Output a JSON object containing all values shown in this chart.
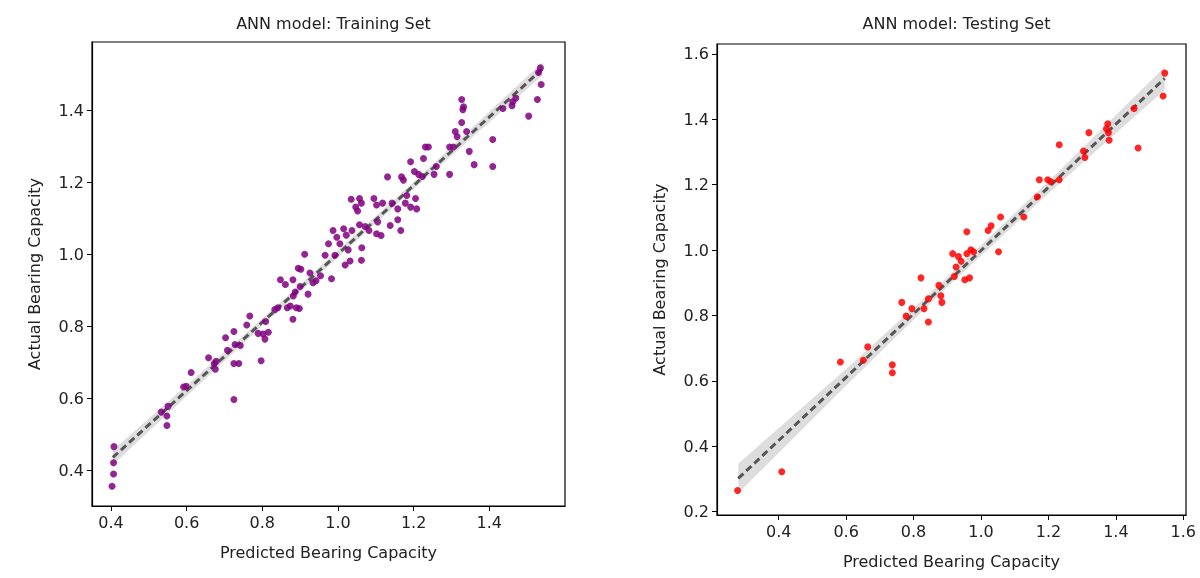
{
  "chart_data": [
    {
      "type": "scatter",
      "title": "ANN model: Training Set",
      "xlabel": "Predicted Bearing Capacity",
      "ylabel": "Actual Bearing Capacity",
      "xlim": [
        0.35,
        1.6
      ],
      "ylim": [
        0.3,
        1.59
      ],
      "xticks": [
        0.4,
        0.6,
        0.8,
        {
          "value": 1,
          "label": "1.0"
        },
        1.2,
        1.4
      ],
      "yticks": [
        0.4,
        0.6,
        0.8,
        {
          "value": 1,
          "label": "1.0"
        },
        1.2,
        1.4
      ],
      "grid": false,
      "series": [
        {
          "marker": "circle",
          "color": "#800080",
          "x": [
            0.403,
            0.407,
            0.407,
            0.408,
            0.533,
            0.551,
            0.548,
            0.548,
            0.592,
            0.599,
            0.612,
            0.658,
            0.673,
            0.676,
            0.678,
            0.703,
            0.708,
            0.725,
            0.725,
            0.725,
            0.728,
            0.738,
            0.742,
            0.759,
            0.767,
            0.797,
            0.789,
            0.802,
            0.807,
            0.809,
            0.816,
            0.833,
            0.841,
            0.848,
            0.861,
            0.866,
            0.874,
            0.881,
            0.881,
            0.882,
            0.887,
            0.89,
            0.898,
            0.895,
            0.902,
            0.9,
            0.912,
            0.921,
            0.926,
            0.934,
            0.942,
            0.954,
            0.966,
            0.975,
            0.983,
            0.987,
            0.992,
            0.997,
            1.005,
            1.015,
            1.019,
            1.022,
            1.027,
            1.032,
            1.035,
            1.037,
            1.047,
            1.052,
            1.057,
            1.057,
            1.062,
            1.062,
            1.063,
            1.072,
            1.082,
            1.095,
            1.102,
            1.102,
            1.105,
            1.114,
            1.118,
            1.131,
            1.138,
            1.143,
            1.158,
            1.158,
            1.166,
            1.168,
            1.173,
            1.178,
            1.182,
            1.192,
            1.192,
            1.202,
            1.205,
            1.208,
            1.213,
            1.223,
            1.226,
            1.231,
            1.239,
            1.254,
            1.26,
            1.295,
            1.295,
            1.305,
            1.31,
            1.315,
            1.327,
            1.33,
            1.332,
            1.327,
            1.34,
            1.347,
            1.36,
            1.409,
            1.409,
            1.436,
            1.46,
            1.462,
            1.47,
            1.504,
            1.527,
            1.53,
            1.535,
            1.537
          ],
          "values": [
            0.355,
            0.389,
            0.42,
            0.465,
            0.561,
            0.577,
            0.55,
            0.524,
            0.631,
            0.633,
            0.671,
            0.712,
            0.696,
            0.68,
            0.702,
            0.768,
            0.733,
            0.785,
            0.696,
            0.596,
            0.749,
            0.696,
            0.746,
            0.803,
            0.828,
            0.704,
            0.78,
            0.778,
            0.764,
            0.813,
            0.783,
            0.846,
            0.851,
            0.929,
            0.916,
            0.851,
            0.856,
            0.819,
            0.929,
            0.884,
            0.895,
            0.851,
            0.849,
            0.961,
            0.958,
            0.91,
            1.0,
            0.889,
            0.948,
            0.921,
            0.926,
            0.94,
            0.997,
            1.029,
            0.932,
            1.066,
            0.997,
            1.047,
            1.029,
            1.071,
            0.97,
            1.053,
            1.012,
            0.981,
            1.153,
            1.066,
            1.131,
            1.12,
            1.155,
            1.082,
            0.983,
            1.142,
            1.018,
            1.077,
            1.066,
            1.155,
            1.057,
            1.137,
            1.09,
            1.052,
            1.142,
            1.215,
            1.08,
            1.142,
            1.126,
            1.096,
            1.066,
            1.215,
            1.206,
            1.142,
            1.163,
            1.257,
            1.131,
            1.23,
            1.155,
            1.126,
            1.222,
            1.216,
            1.266,
            1.298,
            1.298,
            1.222,
            1.244,
            1.222,
            1.298,
            1.298,
            1.341,
            1.327,
            1.43,
            1.402,
            1.41,
            1.366,
            1.341,
            1.286,
            1.249,
            1.319,
            1.244,
            1.405,
            1.413,
            1.424,
            1.434,
            1.384,
            1.43,
            1.505,
            1.518,
            1.472
          ]
        },
        {
          "type": "line",
          "marker": "none",
          "color": "#555555",
          "line_style": "dashed",
          "x": [
            0.405,
            0.8,
            1.2,
            1.54
          ],
          "values": [
            0.435,
            0.811,
            1.191,
            1.515
          ],
          "lower": [
            0.415,
            0.801,
            1.181,
            1.497
          ],
          "upper": [
            0.455,
            0.821,
            1.201,
            1.533
          ]
        }
      ]
    },
    {
      "type": "scatter",
      "title": "ANN model: Testing Set",
      "xlabel": "Predicted Bearing Capacity",
      "ylabel": "Actual Bearing Capacity",
      "xlim": [
        0.217,
        1.608
      ],
      "ylim": [
        0.19,
        1.63
      ],
      "xticks": [
        0.4,
        0.6,
        0.8,
        {
          "value": 1,
          "label": "1.0"
        },
        1.2,
        1.4,
        1.6
      ],
      "yticks": [
        0.2,
        0.4,
        0.6,
        0.8,
        {
          "value": 1,
          "label": "1.0"
        },
        1.2,
        1.4,
        1.6
      ],
      "grid": false,
      "series": [
        {
          "marker": "circle",
          "color": "#ff0000",
          "x": [
            0.278,
            0.409,
            0.583,
            0.651,
            0.664,
            0.737,
            0.737,
            0.765,
            0.778,
            0.795,
            0.822,
            0.831,
            0.844,
            0.844,
            0.875,
            0.881,
            0.884,
            0.916,
            0.921,
            0.926,
            0.933,
            0.941,
            0.952,
            0.958,
            0.958,
            0.966,
            0.97,
            0.978,
            1.021,
            1.03,
            1.052,
            1.058,
            1.127,
            1.167,
            1.173,
            1.198,
            1.207,
            1.232,
            1.232,
            1.304,
            1.308,
            1.32,
            1.372,
            1.376,
            1.378,
            1.38,
            1.454,
            1.466,
            1.54,
            1.545
          ],
          "values": [
            0.265,
            0.322,
            0.658,
            0.663,
            0.704,
            0.649,
            0.625,
            0.84,
            0.798,
            0.821,
            0.915,
            0.821,
            0.78,
            0.851,
            0.892,
            0.86,
            0.84,
            0.989,
            0.919,
            0.948,
            0.98,
            0.966,
            0.909,
            0.989,
            1.056,
            0.915,
            1.001,
            0.995,
            1.06,
            1.074,
            0.995,
            1.101,
            1.101,
            1.163,
            1.215,
            1.215,
            1.209,
            1.215,
            1.322,
            1.303,
            1.283,
            1.359,
            1.371,
            1.386,
            1.359,
            1.336,
            1.433,
            1.312,
            1.471,
            1.541
          ]
        },
        {
          "type": "line",
          "marker": "none",
          "color": "#555555",
          "line_style": "dashed",
          "x": [
            0.28,
            0.6,
            0.9,
            1.2,
            1.545
          ],
          "values": [
            0.302,
            0.611,
            0.902,
            1.192,
            1.525
          ],
          "lower": [
            0.257,
            0.586,
            0.887,
            1.174,
            1.49
          ],
          "upper": [
            0.347,
            0.636,
            0.917,
            1.21,
            1.56
          ]
        }
      ]
    }
  ]
}
